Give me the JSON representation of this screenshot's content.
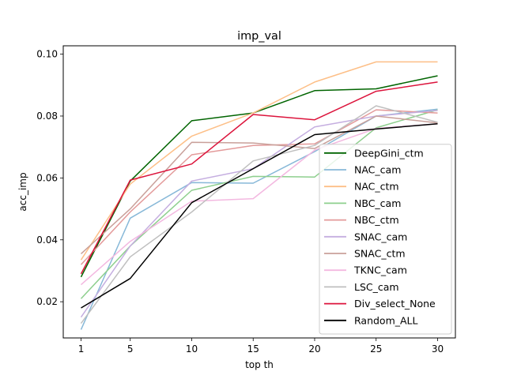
{
  "chart_data": {
    "type": "line",
    "title": "imp_val",
    "xlabel": "top th",
    "ylabel": "acc_imp",
    "x": [
      1,
      5,
      10,
      15,
      20,
      25,
      30
    ],
    "x_ticks": [
      "1",
      "5",
      "10",
      "15",
      "20",
      "25",
      "30"
    ],
    "y_ticks": [
      "0.02",
      "0.04",
      "0.06",
      "0.08",
      "0.10"
    ],
    "xlim": [
      -0.45,
      31.45
    ],
    "ylim": [
      0.0083,
      0.1027
    ],
    "grid": false,
    "legend_position": "lower-right",
    "series": [
      {
        "name": "DeepGini_ctm",
        "color": "#006400",
        "values": [
          0.028,
          0.059,
          0.0785,
          0.081,
          0.0882,
          0.0888,
          0.093
        ]
      },
      {
        "name": "NAC_cam",
        "color": "#87b8d8",
        "values": [
          0.011,
          0.047,
          0.0585,
          0.0583,
          0.0685,
          0.08,
          0.0822
        ]
      },
      {
        "name": "NAC_ctm",
        "color": "#fdbf87",
        "values": [
          0.0335,
          0.058,
          0.0735,
          0.081,
          0.091,
          0.0975,
          0.0975
        ]
      },
      {
        "name": "NBC_cam",
        "color": "#8ecf8e",
        "values": [
          0.021,
          0.038,
          0.056,
          0.0605,
          0.0603,
          0.0762,
          0.082
        ]
      },
      {
        "name": "NBC_ctm",
        "color": "#e39a9a",
        "values": [
          0.032,
          0.049,
          0.0675,
          0.0705,
          0.071,
          0.082,
          0.081
        ]
      },
      {
        "name": "SNAC_cam",
        "color": "#c5aee0",
        "values": [
          0.015,
          0.038,
          0.059,
          0.063,
          0.0765,
          0.08,
          0.0818
        ]
      },
      {
        "name": "SNAC_ctm",
        "color": "#c9a09a",
        "values": [
          0.0355,
          0.05,
          0.0715,
          0.0713,
          0.0695,
          0.08,
          0.0778
        ]
      },
      {
        "name": "TKNC_cam",
        "color": "#f3b8e0",
        "values": [
          0.0255,
          0.0395,
          0.0525,
          0.0533,
          0.069,
          0.076,
          0.0775
        ]
      },
      {
        "name": "LSC_cam",
        "color": "#bfbfbf",
        "values": [
          0.013,
          0.0345,
          0.049,
          0.0655,
          0.0705,
          0.0833,
          0.078
        ]
      },
      {
        "name": "Div_select_None",
        "color": "#dc143c",
        "values": [
          0.029,
          0.0593,
          0.0645,
          0.0805,
          0.0788,
          0.088,
          0.091
        ]
      },
      {
        "name": "Random_ALL",
        "color": "#000000",
        "values": [
          0.018,
          0.0275,
          0.052,
          0.063,
          0.074,
          0.0758,
          0.0775
        ]
      }
    ]
  }
}
